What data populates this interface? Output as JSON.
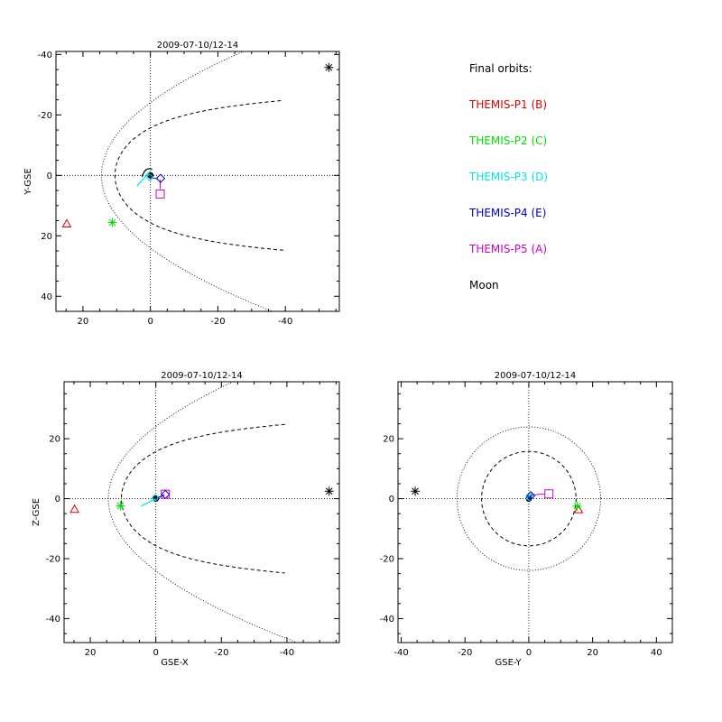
{
  "colors": {
    "P1": "#dd0000",
    "P2": "#00dd00",
    "P3": "#00e5e5",
    "P4": "#0000cc",
    "P5": "#cc00cc",
    "Moon": "#000000"
  },
  "legend": {
    "heading": "Final orbits:",
    "items": [
      {
        "key": "P1",
        "label": "THEMIS-P1 (B)"
      },
      {
        "key": "P2",
        "label": "THEMIS-P2 (C)"
      },
      {
        "key": "P3",
        "label": "THEMIS-P3 (D)"
      },
      {
        "key": "P4",
        "label": "THEMIS-P4 (E)"
      },
      {
        "key": "P5",
        "label": "THEMIS-P5 (A)"
      },
      {
        "key": "Moon",
        "label": "Moon"
      }
    ]
  },
  "chart_data": [
    {
      "type": "scatter",
      "title": "2009-07-10/12-14",
      "xlabel": "",
      "ylabel": "Y-GSE",
      "xlim": [
        28,
        -56
      ],
      "ylim": [
        45,
        -41
      ],
      "xticks": [
        20,
        0,
        -20,
        -40
      ],
      "yticks": [
        -40,
        -20,
        0,
        20,
        40
      ],
      "boundaries": [
        "bow-shock",
        "magnetopause"
      ],
      "markers": [
        {
          "key": "P1",
          "symbol": "triangle",
          "x": 24.8,
          "y": 16.0
        },
        {
          "key": "P2",
          "symbol": "asterisk",
          "x": 11.3,
          "y": 15.6
        },
        {
          "key": "P3",
          "symbol": "circle",
          "x": 0.2,
          "y": 0.7
        },
        {
          "key": "P4",
          "symbol": "diamond",
          "x": -3.0,
          "y": 1.0
        },
        {
          "key": "P5",
          "symbol": "square",
          "x": -2.9,
          "y": 6.2
        },
        {
          "key": "Moon",
          "symbol": "asterisk",
          "x": -52.9,
          "y": -35.7
        }
      ]
    },
    {
      "type": "scatter",
      "title": "2009-07-10/12-14",
      "xlabel": "GSE-X",
      "ylabel": "Z-GSE",
      "xlim": [
        28,
        -56
      ],
      "ylim": [
        -48,
        39
      ],
      "xticks": [
        20,
        0,
        -20,
        -40
      ],
      "yticks": [
        -40,
        -20,
        0,
        20
      ],
      "boundaries": [
        "bow-shock",
        "magnetopause"
      ],
      "markers": [
        {
          "key": "P1",
          "symbol": "triangle",
          "x": 24.8,
          "y": -3.5
        },
        {
          "key": "P2",
          "symbol": "asterisk",
          "x": 10.8,
          "y": -2.4
        },
        {
          "key": "P3",
          "symbol": "circle",
          "x": 0.2,
          "y": 0.3
        },
        {
          "key": "P4",
          "symbol": "diamond",
          "x": -2.9,
          "y": 1.4
        },
        {
          "key": "P5",
          "symbol": "square",
          "x": -2.9,
          "y": 1.5
        },
        {
          "key": "Moon",
          "symbol": "asterisk",
          "x": -52.9,
          "y": 2.5
        }
      ]
    },
    {
      "type": "scatter",
      "title": "2009-07-10/12-14",
      "xlabel": "GSE-Y",
      "ylabel": "",
      "xlim": [
        -41,
        45
      ],
      "ylim": [
        -48,
        39
      ],
      "xticks": [
        -40,
        -20,
        0,
        20,
        40
      ],
      "yticks": [
        -40,
        -20,
        0,
        20
      ],
      "boundaries": [
        "bow-shock circle",
        "magnetopause circle"
      ],
      "markers": [
        {
          "key": "P1",
          "symbol": "triangle",
          "x": 15.6,
          "y": -3.6
        },
        {
          "key": "P2",
          "symbol": "asterisk",
          "x": 15.2,
          "y": -2.5
        },
        {
          "key": "P3",
          "symbol": "circle",
          "x": 0.3,
          "y": 0.4
        },
        {
          "key": "P4",
          "symbol": "diamond",
          "x": 0.6,
          "y": 1.0
        },
        {
          "key": "P5",
          "symbol": "square",
          "x": 6.3,
          "y": 1.6
        },
        {
          "key": "Moon",
          "symbol": "asterisk",
          "x": -35.6,
          "y": 2.5
        }
      ]
    }
  ]
}
